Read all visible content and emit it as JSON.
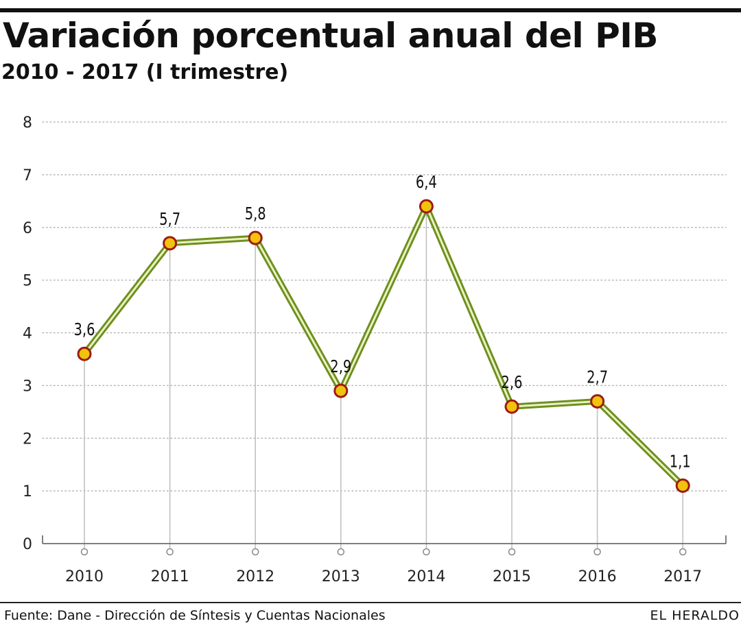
{
  "chart_data": {
    "type": "line",
    "title": "Variación porcentual anual del PIB",
    "subtitle": "2010 - 2017 (I trimestre)",
    "xlabel": "",
    "ylabel": "",
    "categories": [
      "2010",
      "2011",
      "2012",
      "2013",
      "2014",
      "2015",
      "2016",
      "2017"
    ],
    "series": [
      {
        "name": "Variación porcentual anual del PIB",
        "values": [
          3.6,
          5.7,
          5.8,
          2.9,
          6.4,
          2.6,
          2.7,
          1.1
        ],
        "labels": [
          "3,6",
          "5,7",
          "5,8",
          "2,9",
          "6,4",
          "2,6",
          "2,7",
          "1,1"
        ]
      }
    ],
    "ylim": [
      0,
      8
    ],
    "yticks": [
      "0",
      "1",
      "2",
      "3",
      "4",
      "5",
      "6",
      "7",
      "8"
    ],
    "grid": true,
    "legend": "none"
  },
  "footer": {
    "source": "Fuente: Dane - Dirección de Síntesis y Cuentas Nacionales",
    "credit": "EL HERALDO"
  },
  "colors": {
    "line_outer": "#6f8f1e",
    "line_inner": "#e9f2c4",
    "marker_fill": "#f2c20c",
    "marker_stroke": "#9b1b12",
    "grid": "#b5b5b5",
    "drop_line": "#bdbdbd",
    "axis": "#555555"
  }
}
